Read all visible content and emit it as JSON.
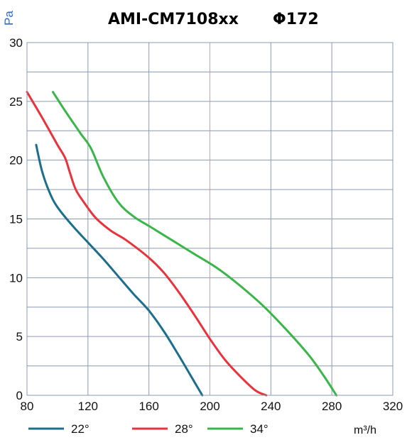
{
  "chart_data": {
    "type": "line",
    "title": "AMI-CM7108xx",
    "subtitle": "Φ172",
    "ylabel": "Pa",
    "xlabel": "m³/h",
    "xlim": [
      80,
      320
    ],
    "ylim": [
      0,
      30
    ],
    "x_ticks": [
      "80",
      "120",
      "160",
      "200",
      "240",
      "280",
      "320"
    ],
    "y_ticks": [
      "0",
      "5",
      "10",
      "15",
      "20",
      "25",
      "30"
    ],
    "grid": true,
    "legend_position": "bottom",
    "series": [
      {
        "name": "22°",
        "color": "#1c6e8c",
        "points": [
          [
            86,
            21.3
          ],
          [
            90,
            19.0
          ],
          [
            95,
            17.2
          ],
          [
            100,
            16.0
          ],
          [
            110,
            14.4
          ],
          [
            120,
            13.0
          ],
          [
            130,
            11.6
          ],
          [
            140,
            10.1
          ],
          [
            150,
            8.6
          ],
          [
            160,
            7.2
          ],
          [
            170,
            5.4
          ],
          [
            180,
            3.3
          ],
          [
            190,
            1.1
          ],
          [
            195,
            0
          ]
        ]
      },
      {
        "name": "28°",
        "color": "#e8333c",
        "points": [
          [
            80,
            25.8
          ],
          [
            90,
            23.6
          ],
          [
            100,
            21.3
          ],
          [
            105,
            20.2
          ],
          [
            108,
            19.0
          ],
          [
            112,
            17.5
          ],
          [
            118,
            16.3
          ],
          [
            125,
            15.1
          ],
          [
            135,
            14.0
          ],
          [
            145,
            13.2
          ],
          [
            160,
            11.7
          ],
          [
            170,
            10.4
          ],
          [
            180,
            8.7
          ],
          [
            190,
            6.8
          ],
          [
            200,
            4.8
          ],
          [
            210,
            3.0
          ],
          [
            220,
            1.6
          ],
          [
            230,
            0.4
          ],
          [
            237,
            0
          ]
        ]
      },
      {
        "name": "34°",
        "color": "#3ab54a",
        "points": [
          [
            97,
            25.8
          ],
          [
            105,
            24.2
          ],
          [
            115,
            22.3
          ],
          [
            122,
            21.0
          ],
          [
            130,
            18.6
          ],
          [
            140,
            16.4
          ],
          [
            150,
            15.2
          ],
          [
            160,
            14.4
          ],
          [
            175,
            13.2
          ],
          [
            190,
            12.0
          ],
          [
            205,
            10.8
          ],
          [
            220,
            9.3
          ],
          [
            235,
            7.6
          ],
          [
            250,
            5.6
          ],
          [
            265,
            3.4
          ],
          [
            275,
            1.6
          ],
          [
            283,
            0
          ]
        ]
      }
    ]
  }
}
